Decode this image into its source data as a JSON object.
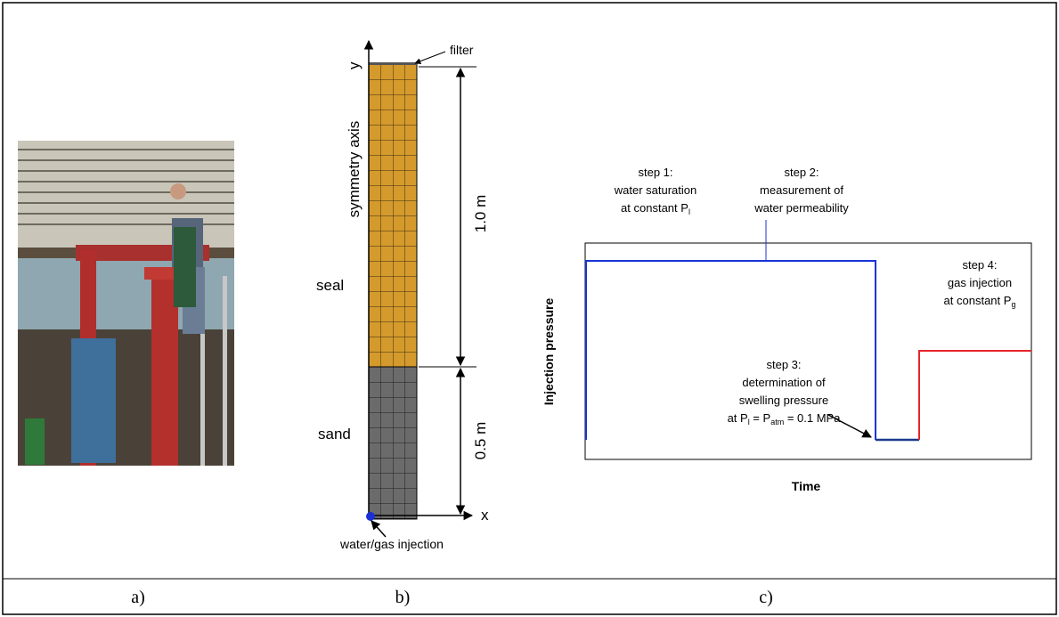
{
  "panels": {
    "labels": [
      "a)",
      "b)",
      "c)"
    ]
  },
  "diagram": {
    "y_axis": "y",
    "x_axis": "x",
    "symmetry_axis": "symmetry axis",
    "filter": "filter",
    "seal": "seal",
    "sand": "sand",
    "seal_height": "1.0 m",
    "sand_height": "0.5 m",
    "injection": "water/gas injection"
  },
  "schematic": {
    "y_label": "Injection pressure",
    "x_label": "Time",
    "step1": [
      "step 1:",
      "water saturation",
      [
        "at constant P",
        "l"
      ]
    ],
    "step2": [
      "step 2:",
      "measurement of",
      "water permeability"
    ],
    "step3": [
      "step 3:",
      "determination of",
      "swelling pressure",
      [
        "at P",
        "l",
        " = P",
        "atm",
        " = 0.1 MPa"
      ]
    ],
    "step4": [
      "step 4:",
      "gas injection",
      [
        "at constant P",
        "g"
      ]
    ]
  }
}
